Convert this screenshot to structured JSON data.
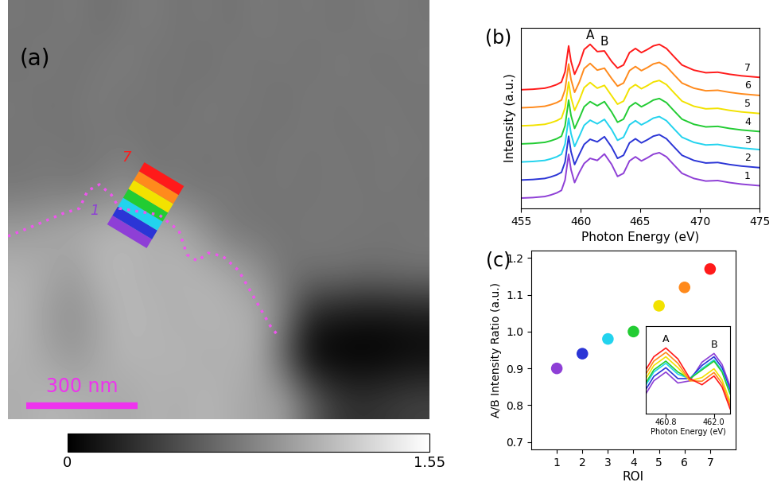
{
  "chart_data": [
    {
      "type": "image",
      "title": "(a)",
      "cells": [
        [
          0.72,
          0.7,
          0.74,
          0.68,
          0.72,
          0.75,
          0.7,
          0.73,
          0.69,
          0.74,
          0.71,
          0.73,
          0.7,
          0.72,
          0.74,
          0.71
        ],
        [
          0.7,
          0.74,
          0.69,
          0.73,
          0.76,
          0.7,
          0.72,
          0.68,
          0.74,
          0.7,
          0.73,
          0.69,
          0.74,
          0.71,
          0.7,
          0.73
        ],
        [
          0.73,
          0.69,
          0.72,
          0.75,
          0.7,
          0.73,
          0.69,
          0.74,
          0.71,
          0.72,
          0.68,
          0.74,
          0.7,
          0.73,
          0.72,
          0.7
        ],
        [
          0.71,
          0.73,
          0.7,
          0.72,
          0.74,
          0.69,
          0.73,
          0.71,
          0.72,
          0.69,
          0.73,
          0.71,
          0.72,
          0.7,
          0.73,
          0.72
        ],
        [
          0.72,
          0.74,
          0.73,
          0.78,
          0.85,
          0.74,
          0.72,
          0.7,
          0.73,
          0.71,
          0.72,
          0.7,
          0.73,
          0.71,
          0.72,
          0.7
        ],
        [
          0.95,
          1.0,
          1.05,
          1.08,
          1.1,
          1.08,
          1.05,
          0.88,
          0.72,
          0.71,
          0.7,
          0.73,
          0.71,
          0.72,
          0.7,
          0.72
        ],
        [
          1.08,
          1.02,
          0.95,
          1.1,
          1.12,
          1.05,
          1.1,
          1.08,
          1.02,
          0.88,
          0.72,
          0.7,
          0.72,
          0.68,
          0.7,
          0.71
        ],
        [
          1.1,
          0.95,
          0.88,
          1.0,
          1.12,
          1.1,
          1.05,
          1.1,
          1.08,
          1.05,
          0.75,
          0.25,
          0.15,
          0.12,
          0.12,
          0.15
        ],
        [
          1.08,
          1.0,
          0.92,
          1.02,
          1.1,
          1.08,
          1.1,
          1.05,
          1.08,
          1.02,
          0.55,
          0.03,
          0.0,
          0.0,
          0.02,
          0.05
        ],
        [
          1.05,
          1.1,
          1.08,
          1.05,
          1.02,
          1.08,
          1.05,
          1.1,
          1.05,
          1.0,
          0.95,
          0.6,
          0.35,
          0.3,
          0.35,
          0.4
        ]
      ],
      "xlim": [
        0,
        1136
      ],
      "ylim": [
        0,
        1129
      ],
      "xticks": [],
      "yticks": [],
      "tick_labels": false,
      "colorbar": {
        "range": [
          0,
          1.55
        ],
        "ticks": [
          0,
          1.55
        ]
      },
      "scale_bar": {
        "length": 300,
        "label": "300 nm"
      },
      "rois": {
        "names": [
          "1",
          null,
          null,
          null,
          null,
          null,
          "7"
        ],
        "colors": [
          "#8e3fd6",
          "#2b35d6",
          "#22d3ee",
          "#22cc33",
          "#f2e200",
          "#ff8a1c",
          "#ff1a1a"
        ]
      }
    },
    {
      "type": "line",
      "title": "(b)",
      "x_label": "Photon Energy (eV)",
      "y_label": "Intensity (a.u.)",
      "x": [
        455,
        456,
        457,
        457.5,
        458,
        458.4,
        458.7,
        459.0,
        459.2,
        459.5,
        459.9,
        460.3,
        460.8,
        461.4,
        462.0,
        462.6,
        463.1,
        463.6,
        464.1,
        464.6,
        465.1,
        465.6,
        466.1,
        466.6,
        467.2,
        467.8,
        468.5,
        469.5,
        470.5,
        471.5,
        472.5,
        473.5,
        475
      ],
      "series": [
        {
          "name": "1",
          "color": "#8e3fd6",
          "values": [
            0.2,
            0.21,
            0.23,
            0.26,
            0.3,
            0.35,
            0.55,
            1.05,
            0.75,
            0.5,
            0.7,
            0.87,
            0.97,
            0.93,
            1.055,
            0.855,
            0.62,
            0.68,
            0.92,
            1.0,
            0.92,
            0.98,
            1.05,
            1.08,
            1.0,
            0.85,
            0.68,
            0.58,
            0.53,
            0.54,
            0.5,
            0.47,
            0.44
          ]
        },
        {
          "name": "2",
          "color": "#2b35d6",
          "values": [
            0.55,
            0.56,
            0.58,
            0.61,
            0.65,
            0.7,
            0.9,
            1.4,
            1.1,
            0.85,
            1.05,
            1.24,
            1.34,
            1.29,
            1.39,
            1.19,
            0.97,
            1.03,
            1.27,
            1.35,
            1.27,
            1.33,
            1.4,
            1.43,
            1.35,
            1.2,
            1.03,
            0.93,
            0.88,
            0.89,
            0.85,
            0.82,
            0.79
          ]
        },
        {
          "name": "3",
          "color": "#22d3ee",
          "values": [
            0.9,
            0.91,
            0.93,
            0.96,
            1.0,
            1.05,
            1.25,
            1.75,
            1.45,
            1.2,
            1.4,
            1.61,
            1.71,
            1.64,
            1.726,
            1.53,
            1.32,
            1.38,
            1.62,
            1.7,
            1.62,
            1.68,
            1.75,
            1.78,
            1.7,
            1.55,
            1.38,
            1.28,
            1.23,
            1.24,
            1.2,
            1.17,
            1.14
          ]
        },
        {
          "name": "4",
          "color": "#22cc33",
          "values": [
            1.25,
            1.26,
            1.28,
            1.31,
            1.35,
            1.4,
            1.6,
            2.1,
            1.8,
            1.55,
            1.75,
            1.97,
            2.07,
            1.99,
            2.07,
            1.87,
            1.67,
            1.73,
            1.97,
            2.05,
            1.97,
            2.03,
            2.1,
            2.13,
            2.05,
            1.9,
            1.73,
            1.63,
            1.58,
            1.59,
            1.55,
            1.52,
            1.49
          ]
        },
        {
          "name": "5",
          "color": "#f2e200",
          "values": [
            1.6,
            1.61,
            1.63,
            1.66,
            1.7,
            1.75,
            1.95,
            2.45,
            2.15,
            1.9,
            2.1,
            2.34,
            2.44,
            2.33,
            2.385,
            2.185,
            2.02,
            2.08,
            2.32,
            2.4,
            2.32,
            2.38,
            2.45,
            2.48,
            2.4,
            2.25,
            2.08,
            1.98,
            1.93,
            1.94,
            1.9,
            1.87,
            1.84
          ]
        },
        {
          "name": "6",
          "color": "#ff8a1c",
          "values": [
            1.95,
            1.96,
            1.98,
            2.01,
            2.05,
            2.1,
            2.3,
            2.8,
            2.5,
            2.25,
            2.45,
            2.71,
            2.81,
            2.68,
            2.718,
            2.52,
            2.37,
            2.43,
            2.67,
            2.75,
            2.67,
            2.73,
            2.8,
            2.83,
            2.75,
            2.6,
            2.43,
            2.33,
            2.28,
            2.29,
            2.25,
            2.22,
            2.19
          ]
        },
        {
          "name": "7",
          "color": "#ff1a1a",
          "values": [
            2.3,
            2.31,
            2.33,
            2.36,
            2.4,
            2.45,
            2.65,
            3.15,
            2.85,
            2.6,
            2.8,
            3.08,
            3.18,
            3.04,
            3.052,
            2.85,
            2.72,
            2.78,
            3.02,
            3.1,
            3.02,
            3.08,
            3.15,
            3.18,
            3.1,
            2.95,
            2.78,
            2.68,
            2.63,
            2.64,
            2.6,
            2.57,
            2.54
          ]
        }
      ],
      "peaks": [
        {
          "label": "A",
          "x": 460.8
        },
        {
          "label": "B",
          "x": 462.0
        }
      ],
      "xlim": [
        455,
        475
      ],
      "xticks": [
        455,
        460,
        465,
        470,
        475
      ],
      "ylim": [
        0,
        3.5
      ],
      "yticks": [],
      "tick_labels": "x"
    },
    {
      "type": "scatter",
      "title": "(c)",
      "x_label": "ROI",
      "y_label": "A/B Intensity Ratio (a.u.)",
      "x": [
        1,
        2,
        3,
        4,
        5,
        6,
        7
      ],
      "values": [
        0.9,
        0.94,
        0.98,
        1.0,
        1.07,
        1.12,
        1.17
      ],
      "colors": [
        "#8e3fd6",
        "#2b35d6",
        "#22d3ee",
        "#22cc33",
        "#f2e200",
        "#ff8a1c",
        "#ff1a1a"
      ],
      "marker": "o",
      "xlim": [
        0,
        8
      ],
      "xticks": [
        1,
        2,
        3,
        4,
        5,
        6,
        7
      ],
      "ylim": [
        0.68,
        1.22
      ],
      "yticks": [
        0.7,
        0.8,
        0.9,
        1.0,
        1.1,
        1.2
      ],
      "inset": {
        "type": "line",
        "x_label": "Photon Energy (eV)",
        "x": [
          460.3,
          460.5,
          460.8,
          461.1,
          461.4,
          461.7,
          462.0,
          462.2,
          462.4
        ],
        "series": [
          {
            "color": "#8e3fd6",
            "values": [
              0.67,
              0.73,
              0.77,
              0.72,
              0.73,
              0.815,
              0.855,
              0.805,
              0.705
            ]
          },
          {
            "color": "#2b35d6",
            "values": [
              0.69,
              0.75,
              0.79,
              0.74,
              0.74,
              0.8,
              0.84,
              0.79,
              0.69
            ]
          },
          {
            "color": "#22d3ee",
            "values": [
              0.71,
              0.77,
              0.81,
              0.76,
              0.74,
              0.786,
              0.826,
              0.776,
              0.676
            ]
          },
          {
            "color": "#22cc33",
            "values": [
              0.72,
              0.78,
              0.82,
              0.77,
              0.74,
              0.78,
              0.82,
              0.77,
              0.67
            ]
          },
          {
            "color": "#f2e200",
            "values": [
              0.74,
              0.8,
              0.84,
              0.79,
              0.73,
              0.745,
              0.785,
              0.735,
              0.635
            ]
          },
          {
            "color": "#ff8a1c",
            "values": [
              0.76,
              0.82,
              0.86,
              0.81,
              0.73,
              0.728,
              0.768,
              0.718,
              0.618
            ]
          },
          {
            "color": "#ff1a1a",
            "values": [
              0.78,
              0.84,
              0.88,
              0.83,
              0.74,
              0.712,
              0.752,
              0.702,
              0.602
            ]
          }
        ],
        "peaks": [
          {
            "label": "A",
            "x": 460.8
          },
          {
            "label": "B",
            "x": 462.0
          }
        ],
        "xlim": [
          460.3,
          462.4
        ],
        "xticks": [
          460.8,
          462.0
        ],
        "ylim": [
          0.58,
          0.98
        ],
        "yticks": [],
        "tick_labels": "x"
      }
    }
  ]
}
